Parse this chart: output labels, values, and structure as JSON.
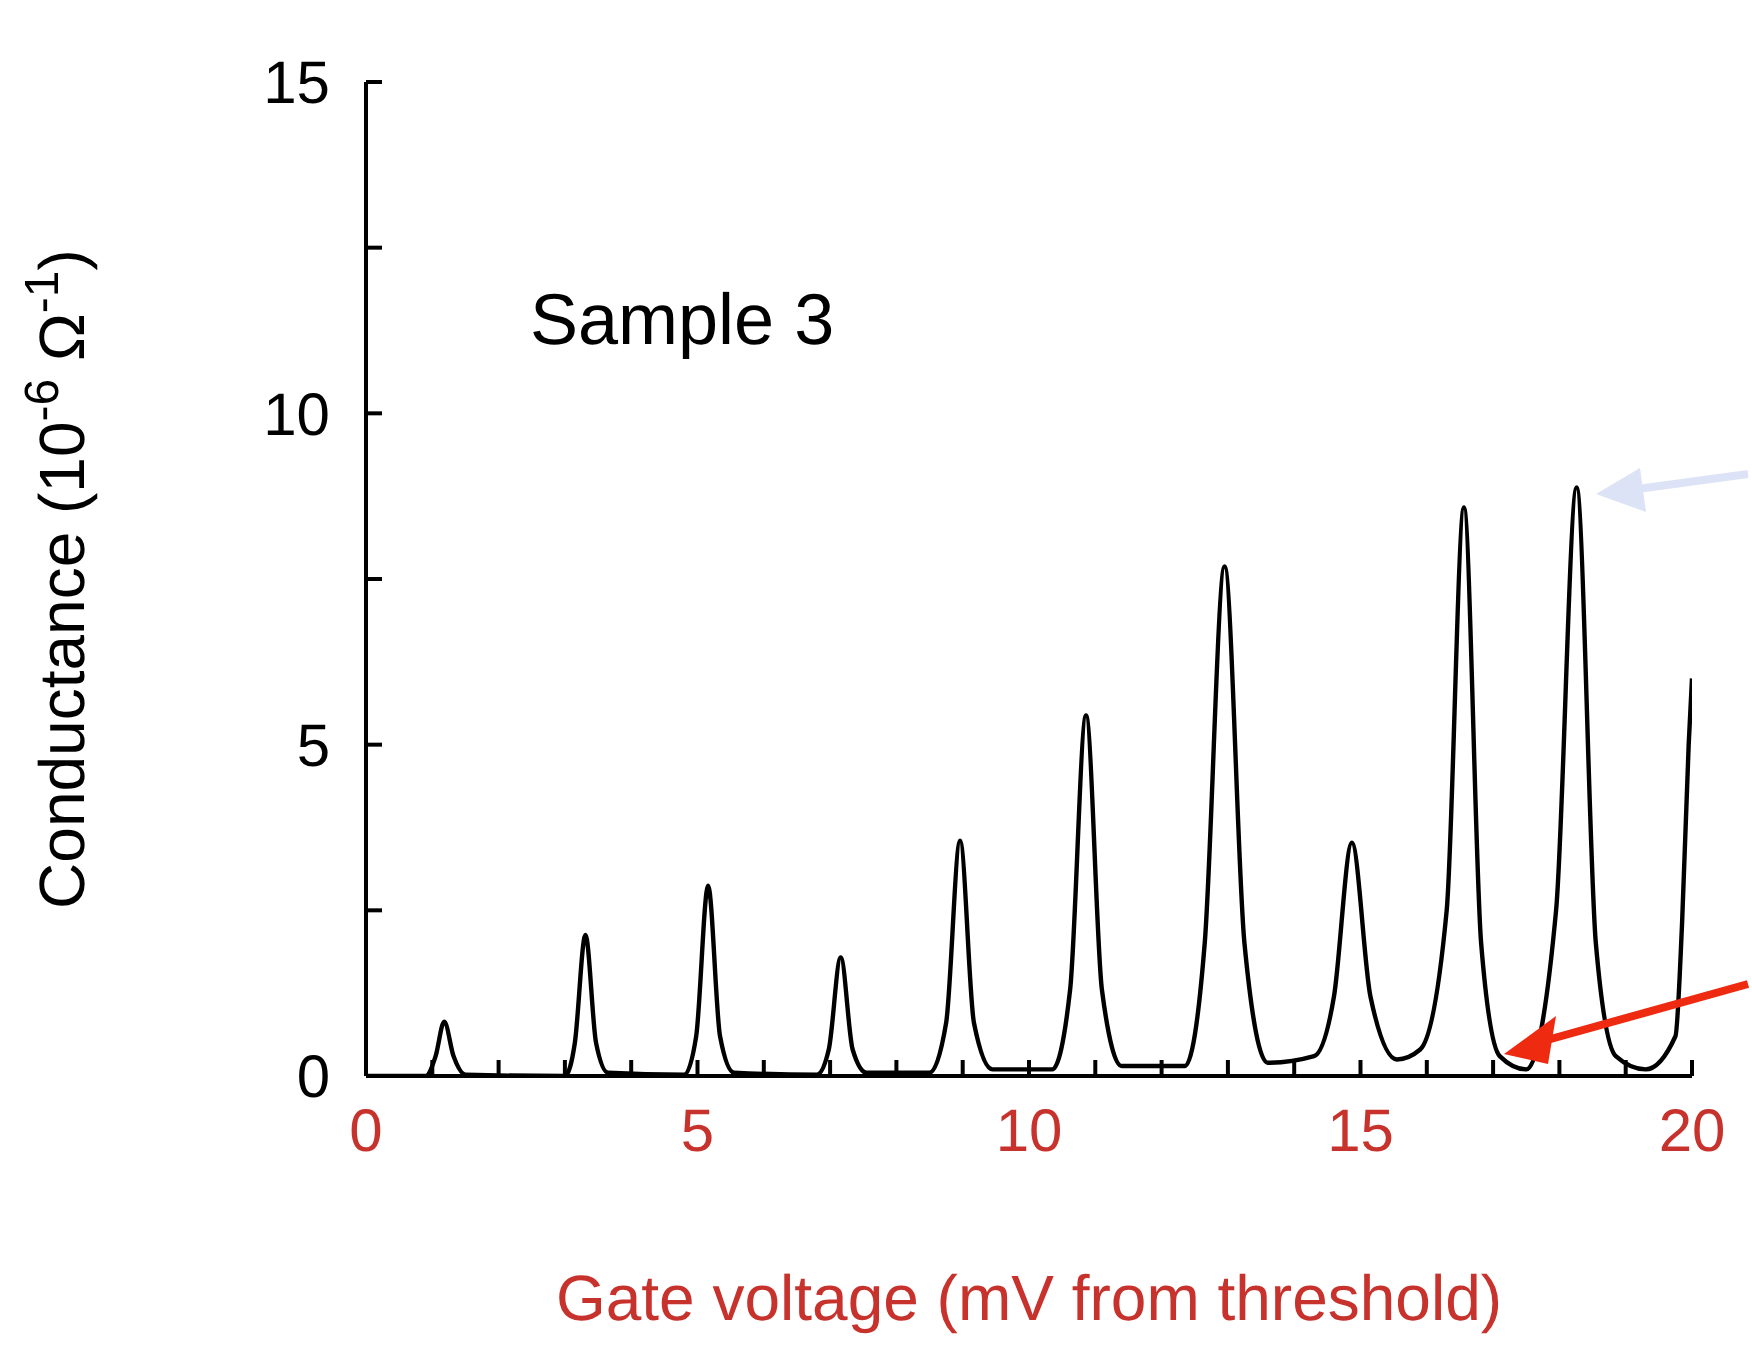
{
  "chart_data": {
    "type": "line",
    "xlabel": "Gate voltage (mV from threshold)",
    "ylabel": "Conductance  (10$^{-6}$ Ω$^{-1}$)",
    "annotations": [
      "Sample 3"
    ],
    "x": [
      0,
      0.9,
      1.05,
      1.18,
      1.32,
      1.5,
      3.0,
      3.15,
      3.31,
      3.47,
      3.65,
      4.8,
      4.98,
      5.16,
      5.34,
      5.55,
      6.8,
      6.98,
      7.16,
      7.34,
      7.55,
      8.5,
      8.75,
      8.96,
      9.17,
      9.45,
      10.35,
      10.62,
      10.86,
      11.1,
      11.4,
      12.35,
      12.65,
      12.95,
      13.25,
      13.6,
      14.3,
      14.6,
      14.87,
      15.15,
      15.55,
      15.9,
      16.3,
      16.56,
      16.82,
      17.1,
      17.5,
      17.95,
      18.26,
      18.55,
      18.85,
      19.3,
      19.75,
      19.85,
      19.95,
      20
    ],
    "series": [
      {
        "color": "#000000",
        "values": [
          0,
          0,
          0.3,
          0.82,
          0.3,
          0.02,
          0,
          0.5,
          2.13,
          0.5,
          0.05,
          0.02,
          0.6,
          2.87,
          0.6,
          0.05,
          0.02,
          0.4,
          1.79,
          0.4,
          0.05,
          0.05,
          0.8,
          3.55,
          0.8,
          0.1,
          0.1,
          1.3,
          5.44,
          1.3,
          0.15,
          0.15,
          2.0,
          7.69,
          2.0,
          0.2,
          0.3,
          1.2,
          3.52,
          1.2,
          0.25,
          0.4,
          2.5,
          8.58,
          2.0,
          0.3,
          0.1,
          2.5,
          8.88,
          2.0,
          0.3,
          0.1,
          0.6,
          2.3,
          5.0,
          6.0
        ]
      }
    ],
    "xlim": [
      0,
      20
    ],
    "xticks": [
      0,
      {
        "value": 1,
        "label": null
      },
      {
        "value": 2,
        "label": null
      },
      {
        "value": 3,
        "label": null
      },
      {
        "value": 4,
        "label": null
      },
      5,
      {
        "value": 6,
        "label": null
      },
      {
        "value": 7,
        "label": null
      },
      {
        "value": 8,
        "label": null
      },
      {
        "value": 9,
        "label": null
      },
      10,
      {
        "value": 11,
        "label": null
      },
      {
        "value": 12,
        "label": null
      },
      {
        "value": 13,
        "label": null
      },
      {
        "value": 14,
        "label": null
      },
      15,
      {
        "value": 16,
        "label": null
      },
      {
        "value": 17,
        "label": null
      },
      {
        "value": 18,
        "label": null
      },
      {
        "value": 19,
        "label": null
      },
      20
    ],
    "ylim": [
      0,
      15
    ],
    "yticks": [
      0,
      {
        "value": 2.5,
        "label": null
      },
      5,
      {
        "value": 7.5,
        "label": null
      },
      10,
      {
        "value": 12.5,
        "label": null
      },
      15
    ],
    "line_style": "solid"
  }
}
